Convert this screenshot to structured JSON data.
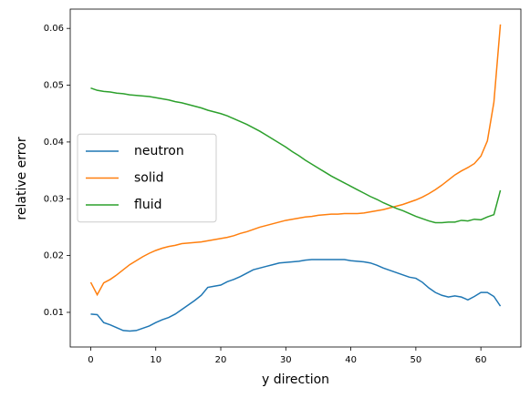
{
  "chart_data": {
    "type": "line",
    "xlabel": "y direction",
    "ylabel": "relative error",
    "x": [
      0,
      1,
      2,
      3,
      4,
      5,
      6,
      7,
      8,
      9,
      10,
      11,
      12,
      13,
      14,
      15,
      16,
      17,
      18,
      19,
      20,
      21,
      22,
      23,
      24,
      25,
      26,
      27,
      28,
      29,
      30,
      31,
      32,
      33,
      34,
      35,
      36,
      37,
      38,
      39,
      40,
      41,
      42,
      43,
      44,
      45,
      46,
      47,
      48,
      49,
      50,
      51,
      52,
      53,
      54,
      55,
      56,
      57,
      58,
      59,
      60,
      61,
      62,
      63
    ],
    "series": [
      {
        "name": "neutron",
        "color": "#1f77b4",
        "values": [
          0.0097,
          0.0096,
          0.0082,
          0.0078,
          0.0073,
          0.0068,
          0.0067,
          0.0068,
          0.0072,
          0.0076,
          0.0082,
          0.0087,
          0.0091,
          0.0097,
          0.0105,
          0.0113,
          0.0121,
          0.013,
          0.0144,
          0.0146,
          0.0148,
          0.0154,
          0.0158,
          0.0163,
          0.0169,
          0.0175,
          0.0178,
          0.0181,
          0.0184,
          0.0187,
          0.0188,
          0.0189,
          0.019,
          0.0192,
          0.0193,
          0.0193,
          0.0193,
          0.0193,
          0.0193,
          0.0193,
          0.0191,
          0.019,
          0.0189,
          0.0187,
          0.0183,
          0.0178,
          0.0174,
          0.017,
          0.0166,
          0.0162,
          0.016,
          0.0153,
          0.0143,
          0.0135,
          0.013,
          0.0127,
          0.0129,
          0.0127,
          0.0122,
          0.0128,
          0.0135,
          0.0135,
          0.0128,
          0.0111
        ]
      },
      {
        "name": "solid",
        "color": "#ff7f0e",
        "values": [
          0.0153,
          0.0131,
          0.0152,
          0.0158,
          0.0166,
          0.0175,
          0.0184,
          0.0191,
          0.0198,
          0.0204,
          0.0209,
          0.0213,
          0.0216,
          0.0218,
          0.0221,
          0.0222,
          0.0223,
          0.0224,
          0.0226,
          0.0228,
          0.023,
          0.0232,
          0.0235,
          0.0239,
          0.0242,
          0.0246,
          0.025,
          0.0253,
          0.0256,
          0.0259,
          0.0262,
          0.0264,
          0.0266,
          0.0268,
          0.0269,
          0.0271,
          0.0272,
          0.0273,
          0.0273,
          0.0274,
          0.0274,
          0.0274,
          0.0275,
          0.0277,
          0.0279,
          0.0281,
          0.0284,
          0.0287,
          0.029,
          0.0294,
          0.0298,
          0.0303,
          0.0309,
          0.0316,
          0.0324,
          0.0333,
          0.0342,
          0.0349,
          0.0355,
          0.0362,
          0.0375,
          0.0402,
          0.047,
          0.0607
        ]
      },
      {
        "name": "fluid",
        "color": "#2ca02c",
        "values": [
          0.0495,
          0.0491,
          0.0489,
          0.0488,
          0.0486,
          0.0485,
          0.0483,
          0.0482,
          0.0481,
          0.048,
          0.0478,
          0.0476,
          0.0474,
          0.0471,
          0.0469,
          0.0466,
          0.0463,
          0.046,
          0.0456,
          0.0453,
          0.045,
          0.0446,
          0.0441,
          0.0436,
          0.0431,
          0.0425,
          0.0419,
          0.0412,
          0.0405,
          0.0398,
          0.0391,
          0.0383,
          0.0376,
          0.0368,
          0.0361,
          0.0354,
          0.0347,
          0.034,
          0.0334,
          0.0328,
          0.0322,
          0.0316,
          0.031,
          0.0304,
          0.0299,
          0.0293,
          0.0288,
          0.0283,
          0.0279,
          0.0274,
          0.0269,
          0.0265,
          0.0261,
          0.0258,
          0.0258,
          0.0259,
          0.0259,
          0.0262,
          0.0261,
          0.0264,
          0.0263,
          0.0268,
          0.0272,
          0.0315
        ]
      }
    ],
    "xlim": [
      -3.15,
      66.15
    ],
    "xticks": [
      0,
      10,
      20,
      30,
      40,
      50,
      60
    ],
    "ylim": [
      0.0039,
      0.0634
    ],
    "yticks": [
      0.01,
      0.02,
      0.03,
      0.04,
      0.05,
      0.06
    ],
    "legend": "center left"
  }
}
